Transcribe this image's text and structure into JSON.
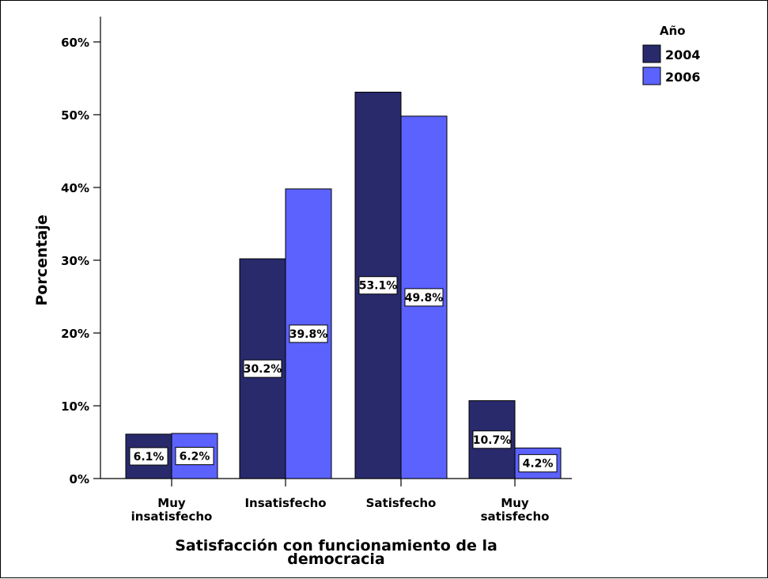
{
  "chart_data": {
    "type": "bar",
    "categories": [
      [
        "Muy",
        "insatisfecho"
      ],
      [
        "Insatisfecho"
      ],
      [
        "Satisfecho"
      ],
      [
        "Muy",
        "satisfecho"
      ]
    ],
    "series": [
      {
        "name": "2004",
        "color": "#282a6c",
        "values": [
          6.1,
          30.2,
          53.1,
          10.7
        ],
        "labels": [
          "6.1%",
          "30.2%",
          "53.1%",
          "10.7%"
        ]
      },
      {
        "name": "2006",
        "color": "#5c62fe",
        "values": [
          6.2,
          39.8,
          49.8,
          4.2
        ],
        "labels": [
          "6.2%",
          "39.8%",
          "49.8%",
          "4.2%"
        ]
      }
    ],
    "xlabel": [
      "Satisfacción con funcionamiento de la",
      "democracia"
    ],
    "ylabel": "Porcentaje",
    "ylim": [
      0,
      60
    ],
    "yticks": [
      0,
      10,
      20,
      30,
      40,
      50,
      60
    ],
    "ytick_labels": [
      "0%",
      "10%",
      "20%",
      "30%",
      "40%",
      "50%",
      "60%"
    ],
    "legend_title": "Año",
    "legend_position": "top-right",
    "grid": false
  }
}
